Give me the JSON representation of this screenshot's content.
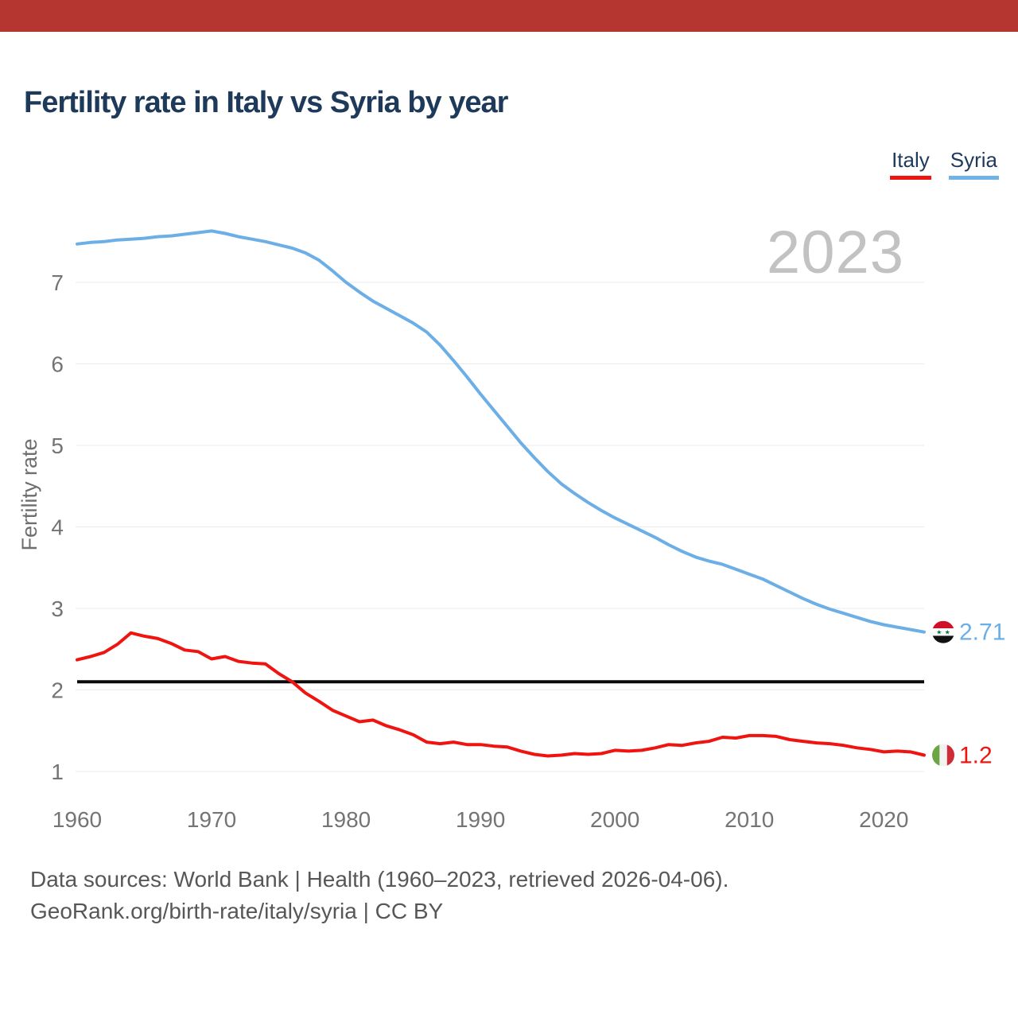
{
  "top_bar": {
    "color": "#b53530"
  },
  "header": {
    "title": "Fertility rate in Italy vs Syria by year"
  },
  "legend": {
    "items": [
      {
        "label": "Italy",
        "color": "#f01410"
      },
      {
        "label": "Syria",
        "color": "#6fb3e8"
      }
    ]
  },
  "chart_data": {
    "type": "line",
    "title": "Fertility rate in Italy vs Syria by year",
    "xlabel": "",
    "ylabel": "Fertility rate",
    "annotation": "2023",
    "x_range": [
      1960,
      2023
    ],
    "x_step": 1,
    "x_ticks": [
      1960,
      1970,
      1980,
      1990,
      2000,
      2010,
      2020
    ],
    "y_ticks": [
      1,
      2,
      3,
      4,
      5,
      6,
      7
    ],
    "ylim": [
      0.6,
      7.8
    ],
    "grid": "horizontal",
    "legend_position": "top-right",
    "reference_line": {
      "value": 2.1,
      "color": "#0a0a0a"
    },
    "series": [
      {
        "name": "Italy",
        "color": "#f01410",
        "end_label": "1.2",
        "flag": "italy_flag",
        "values": [
          2.37,
          2.41,
          2.46,
          2.56,
          2.7,
          2.66,
          2.63,
          2.57,
          2.49,
          2.47,
          2.38,
          2.41,
          2.35,
          2.33,
          2.32,
          2.2,
          2.1,
          1.96,
          1.86,
          1.75,
          1.68,
          1.61,
          1.63,
          1.56,
          1.51,
          1.45,
          1.36,
          1.34,
          1.36,
          1.33,
          1.33,
          1.31,
          1.3,
          1.25,
          1.21,
          1.19,
          1.2,
          1.22,
          1.21,
          1.22,
          1.26,
          1.25,
          1.26,
          1.29,
          1.33,
          1.32,
          1.35,
          1.37,
          1.42,
          1.41,
          1.44,
          1.44,
          1.43,
          1.39,
          1.37,
          1.35,
          1.34,
          1.32,
          1.29,
          1.27,
          1.24,
          1.25,
          1.24,
          1.2
        ]
      },
      {
        "name": "Syria",
        "color": "#6caee6",
        "end_label": "2.71",
        "flag": "syria_flag",
        "values": [
          7.47,
          7.49,
          7.5,
          7.52,
          7.53,
          7.54,
          7.56,
          7.57,
          7.59,
          7.61,
          7.63,
          7.6,
          7.56,
          7.53,
          7.5,
          7.46,
          7.42,
          7.36,
          7.27,
          7.14,
          7.0,
          6.88,
          6.77,
          6.68,
          6.59,
          6.5,
          6.39,
          6.23,
          6.04,
          5.84,
          5.63,
          5.43,
          5.23,
          5.03,
          4.85,
          4.68,
          4.53,
          4.41,
          4.3,
          4.2,
          4.11,
          4.03,
          3.95,
          3.87,
          3.78,
          3.7,
          3.63,
          3.58,
          3.54,
          3.48,
          3.42,
          3.36,
          3.28,
          3.2,
          3.12,
          3.05,
          2.99,
          2.94,
          2.89,
          2.84,
          2.8,
          2.77,
          2.74,
          2.71
        ]
      }
    ]
  },
  "footer": {
    "line1": "Data sources: World Bank | Health (1960–2023, retrieved 2026-04-06).",
    "line2": "GeoRank.org/birth-rate/italy/syria | CC BY"
  }
}
